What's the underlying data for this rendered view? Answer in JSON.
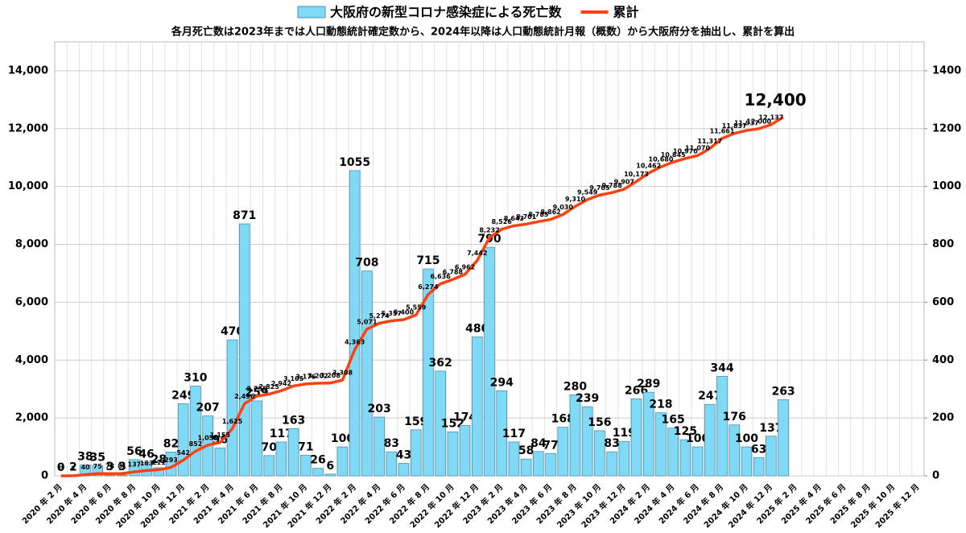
{
  "chart_data": {
    "type": "bar_line",
    "title": "各月死亡数は2023年までは人口動態統計確定数から、2024年以降は人口動態統計月報（概数）から大阪府分を抽出し、累計を算出",
    "categories": [
      "2020 年 2 月",
      null,
      "2020 年 4 月",
      null,
      "2020 年 6 月",
      null,
      "2020 年 8 月",
      null,
      "2020 年 10 月",
      null,
      "2020 年 12 月",
      null,
      "2021 年 2 月",
      null,
      "2021 年 4 月",
      null,
      "2021 年 6 月",
      null,
      "2021 年 8 月",
      null,
      "2021 年 10 月",
      null,
      "2021 年 12 月",
      null,
      "2022 年 2 月",
      null,
      "2022 年 4 月",
      null,
      "2022 年 6 月",
      null,
      "2022 年 8 月",
      null,
      "2022 年 10 月",
      null,
      "2022 年 12 月",
      null,
      "2023 年 2 月",
      null,
      "2023 年 4 月",
      null,
      "2023 年 6 月",
      null,
      "2023 年 8 月",
      null,
      "2023 年 10 月",
      null,
      "2023 年 12 月",
      null,
      "2024 年 2 月",
      null,
      "2024 年 4 月",
      null,
      "2024 年 6 月",
      null,
      "2024 年 8 月",
      null,
      "2024 年 10 月",
      null,
      "2024 年 12 月",
      null,
      "2025 年 2 月",
      null,
      "2025 年 4 月",
      null,
      "2025 年 6 月",
      null,
      "2025 年 8 月",
      null,
      "2025 年 10 月",
      null,
      "2025 年 12 月"
    ],
    "series": [
      {
        "name": "大阪府の新型コロナ感染症による死亡数",
        "type": "bar",
        "axis": "y2",
        "color": "#80daf6",
        "values": [
          0,
          2,
          38,
          35,
          3,
          3,
          56,
          46,
          28,
          82,
          249,
          310,
          207,
          96,
          470,
          871,
          259,
          70,
          117,
          163,
          71,
          26,
          6,
          100,
          1055,
          708,
          203,
          83,
          43,
          159,
          715,
          362,
          152,
          174,
          480,
          790,
          294,
          117,
          58,
          84,
          77,
          168,
          280,
          239,
          156,
          83,
          119,
          266,
          289,
          218,
          165,
          125,
          100,
          247,
          344,
          176,
          100,
          63,
          137,
          263,
          null,
          null,
          null,
          null,
          null,
          null,
          null,
          null,
          null,
          null,
          null
        ]
      },
      {
        "name": "累計",
        "type": "line",
        "axis": "y",
        "color": "#ff4010",
        "values": [
          0,
          2,
          40,
          75,
          78,
          81,
          137,
          183,
          211,
          293,
          542,
          852,
          1059,
          1155,
          1625,
          2496,
          2755,
          2825,
          2942,
          3105,
          3176,
          3202,
          3208,
          3308,
          4363,
          5071,
          5274,
          5357,
          5400,
          5559,
          6274,
          6636,
          6788,
          6962,
          7442,
          8232,
          8526,
          8643,
          8701,
          8785,
          8862,
          9030,
          9310,
          9549,
          9705,
          9788,
          9907,
          10173,
          10462,
          10680,
          10845,
          10970,
          11070,
          11317,
          11661,
          11837,
          11937,
          12000,
          12137,
          12400,
          null,
          null,
          null,
          null,
          null,
          null,
          null,
          null,
          null,
          null,
          null
        ],
        "value_labels": [
          "0",
          "2",
          "40",
          "75",
          "78",
          "81",
          "137",
          "183",
          "211",
          "293",
          "542",
          "852",
          "1,059",
          "1,155",
          "1,625",
          "2,496",
          "2,755",
          "2,825",
          "2,942",
          "3,105",
          "3,176",
          "3,202",
          "3,208",
          "3,308",
          "4,363",
          "5,071",
          "5,274",
          "5,357",
          "5,400",
          "5,559",
          "6,274",
          "6,636",
          "6,788",
          "6,962",
          "7,442",
          "8,232",
          "8,526",
          "8,643",
          "8,701",
          "8,785",
          "8,862",
          "9,030",
          "9,310",
          "9,549",
          "9,705",
          "9,788",
          "9,907",
          "10,173",
          "10,462",
          "10,680",
          "10,845",
          "10,970",
          "11,070",
          "11,317",
          "11,661",
          "11,837",
          "11,937",
          "12,000",
          "12,137",
          "12,400",
          null,
          null,
          null,
          null,
          null,
          null,
          null,
          null,
          null,
          null,
          null
        ]
      }
    ],
    "ylim": [
      0,
      15000
    ],
    "yticks": [
      0,
      {
        "value": 2000,
        "label": "2,000"
      },
      {
        "value": 4000,
        "label": "4,000"
      },
      {
        "value": 6000,
        "label": "6,000"
      },
      {
        "value": 8000,
        "label": "8,000"
      },
      {
        "value": 10000,
        "label": "10,000"
      },
      {
        "value": 12000,
        "label": "12,000"
      },
      {
        "value": 14000,
        "label": "14,000"
      }
    ],
    "y2lim": [
      0,
      1500
    ],
    "y2ticks": [
      0,
      200,
      400,
      600,
      800,
      1000,
      1200,
      1400
    ],
    "grid": true,
    "legend": "top"
  }
}
